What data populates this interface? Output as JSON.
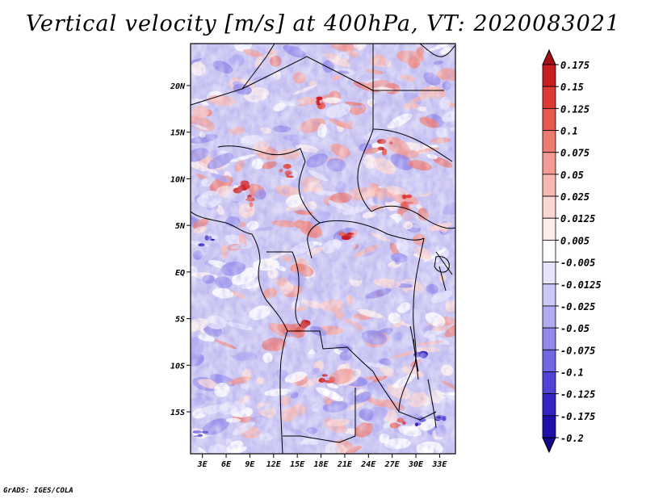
{
  "title": "Vertical velocity [m/s] at 400hPa, VT: 2020083021",
  "credit": "GrADS: IGES/COLA",
  "map": {
    "variable": "Vertical velocity",
    "units": "m/s",
    "level": "400hPa",
    "valid_time": "2020083021",
    "lat_labels": [
      "20N",
      "15N",
      "10N",
      "5N",
      "EQ",
      "5S",
      "10S",
      "15S"
    ],
    "lat_values": [
      20,
      15,
      10,
      5,
      0,
      -5,
      -10,
      -15
    ],
    "lon_labels": [
      "3E",
      "6E",
      "9E",
      "12E",
      "15E",
      "18E",
      "21E",
      "24E",
      "27E",
      "30E",
      "33E"
    ],
    "lon_values": [
      3,
      6,
      9,
      12,
      15,
      18,
      21,
      24,
      27,
      30,
      33
    ],
    "lon_range": [
      1.5,
      35
    ],
    "lat_range": [
      -19.5,
      24.5
    ]
  },
  "colorbar": {
    "labels": [
      "0.175",
      "0.15",
      "0.125",
      "0.1",
      "0.075",
      "0.05",
      "0.025",
      "0.0125",
      "0.005",
      "-0.005",
      "-0.0125",
      "-0.025",
      "-0.05",
      "-0.075",
      "-0.1",
      "-0.125",
      "-0.175",
      "-0.2"
    ],
    "colors": [
      "#a50f15",
      "#c81d22",
      "#de3a35",
      "#e75a52",
      "#ef7a72",
      "#f39a92",
      "#f7b8b2",
      "#fbd6d2",
      "#ffeeec",
      "#ffffff",
      "#e6e4fb",
      "#cdc9f6",
      "#b1abf1",
      "#9289ea",
      "#7166e2",
      "#5243d6",
      "#3523c4",
      "#2010a8",
      "#14068a"
    ],
    "top_color": "#a50f15",
    "bottom_color": "#14068a"
  }
}
